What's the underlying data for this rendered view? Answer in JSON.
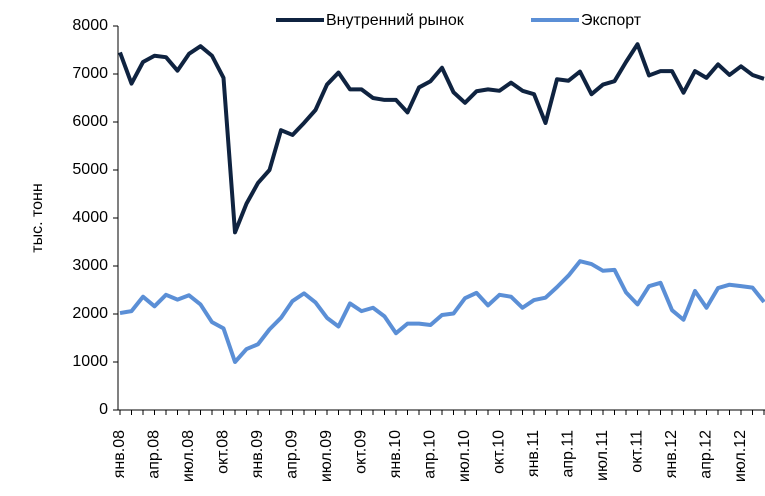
{
  "chart_data": {
    "type": "line",
    "y_label": "тыс. тонн",
    "categories": [
      "янв.08",
      null,
      null,
      "апр.08",
      null,
      null,
      "июл.08",
      null,
      null,
      "окт.08",
      null,
      null,
      "янв.09",
      null,
      null,
      "апр.09",
      null,
      null,
      "июл.09",
      null,
      null,
      "окт.09",
      null,
      null,
      "янв.10",
      null,
      null,
      "апр.10",
      null,
      null,
      "июл.10",
      null,
      null,
      "окт.10",
      null,
      null,
      "янв.11",
      null,
      null,
      "апр.11",
      null,
      null,
      "июл.11",
      null,
      null,
      "окт.11",
      null,
      null,
      "янв.12",
      null,
      null,
      "апр.12",
      null,
      null,
      "июл.12",
      null,
      null
    ],
    "series": [
      {
        "name": "Внутренний рынок",
        "color": "#0f2340",
        "values": [
          7450,
          6800,
          7250,
          7380,
          7350,
          7070,
          7420,
          7580,
          7380,
          6920,
          3700,
          4300,
          4730,
          5000,
          5830,
          5730,
          5980,
          6250,
          6780,
          7030,
          6680,
          6680,
          6500,
          6460,
          6460,
          6200,
          6720,
          6850,
          7130,
          6620,
          6400,
          6640,
          6680,
          6650,
          6820,
          6650,
          6580,
          5980,
          6890,
          6860,
          7050,
          6580,
          6780,
          6850,
          7250,
          7620,
          6970,
          7060,
          7060,
          6610,
          7060,
          6920,
          7200,
          6980,
          7160,
          6980,
          6900
        ]
      },
      {
        "name": "Экспорт",
        "color": "#5b8fd6",
        "values": [
          2020,
          2060,
          2360,
          2160,
          2400,
          2300,
          2390,
          2200,
          1830,
          1700,
          1000,
          1270,
          1370,
          1680,
          1920,
          2270,
          2430,
          2240,
          1920,
          1740,
          2220,
          2060,
          2130,
          1950,
          1600,
          1800,
          1800,
          1770,
          1980,
          2010,
          2330,
          2440,
          2180,
          2400,
          2360,
          2130,
          2290,
          2340,
          2560,
          2800,
          3100,
          3040,
          2900,
          2920,
          2450,
          2200,
          2580,
          2650,
          2080,
          1880,
          2480,
          2130,
          2540,
          2610,
          2580,
          2550,
          2250
        ]
      }
    ],
    "ylim": [
      0,
      8000
    ],
    "yticks": [
      0,
      1000,
      2000,
      3000,
      4000,
      5000,
      6000,
      7000,
      8000
    ],
    "grid": false,
    "legend": "top"
  }
}
